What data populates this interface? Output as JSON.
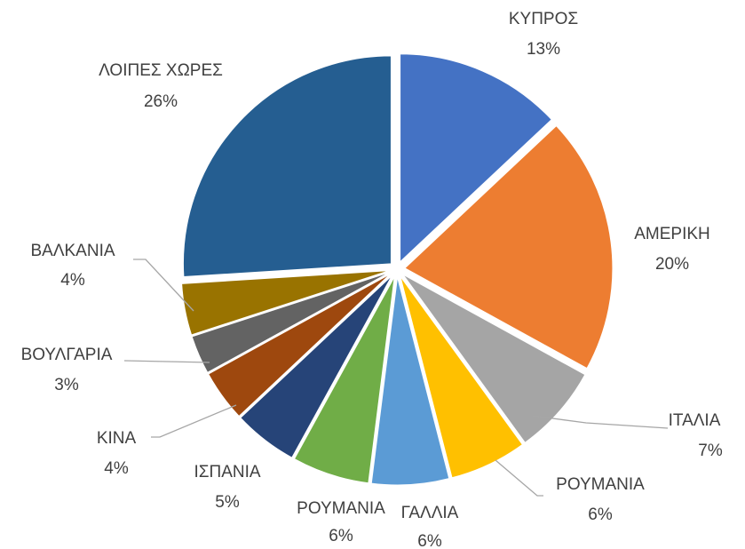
{
  "chart_data": {
    "type": "pie",
    "categories": [
      "ΚΥΠΡΟΣ",
      "ΑΜΕΡΙΚΗ",
      "ΙΤΑΛΙΑ",
      "ΡΟΥΜΑΝΙΑ",
      "ΓΑΛΛΙΑ",
      "ΡΟΥΜΑΝΙΑ",
      "ΙΣΠΑΝΙΑ",
      "ΚΙΝΑ",
      "ΒΟΥΛΓΑΡΙΑ",
      "ΒΑΛΚΑΝΙΑ",
      "ΛΟΙΠΕΣ ΧΩΡΕΣ"
    ],
    "values": [
      13,
      20,
      7,
      6,
      6,
      6,
      5,
      4,
      3,
      4,
      26
    ],
    "value_labels": [
      "13%",
      "20%",
      "7%",
      "6%",
      "6%",
      "6%",
      "5%",
      "4%",
      "3%",
      "4%",
      "26%"
    ],
    "colors": [
      "#4472c4",
      "#ed7d31",
      "#a5a5a5",
      "#ffc000",
      "#5b9bd5",
      "#70ad47",
      "#264478",
      "#9e480e",
      "#636363",
      "#997300",
      "#255e91"
    ]
  }
}
